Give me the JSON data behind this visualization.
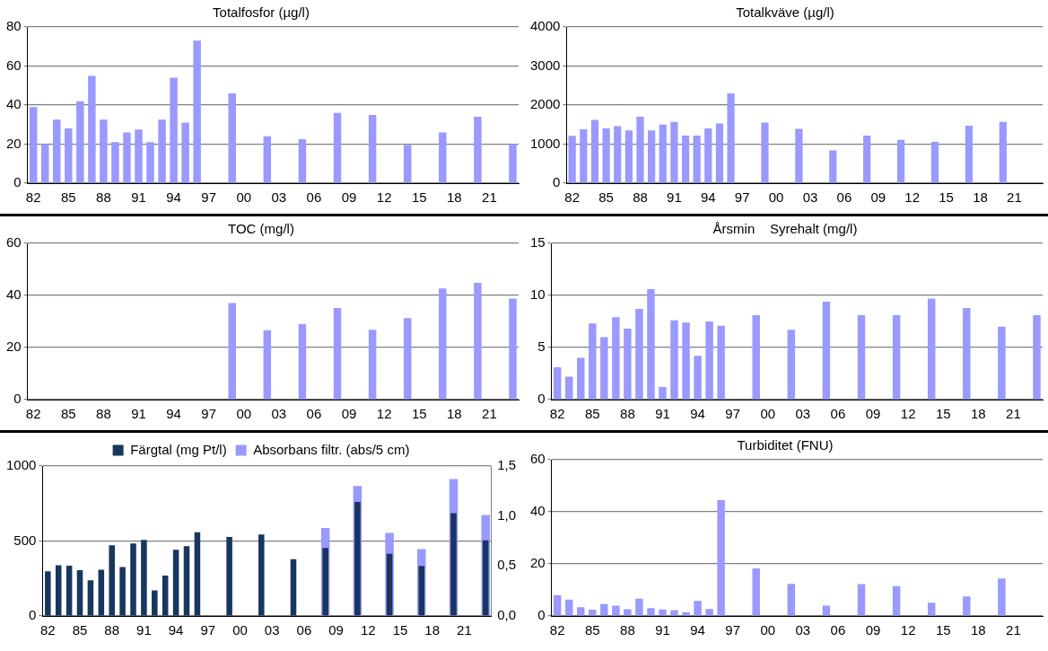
{
  "chart_data": [
    {
      "type": "bar",
      "title": "Totalfosfor (µg/l)",
      "categories": [
        "82",
        null,
        null,
        "85",
        null,
        null,
        "88",
        null,
        null,
        "91",
        null,
        null,
        "94",
        null,
        null,
        "97",
        null,
        null,
        "00",
        null,
        null,
        "03",
        null,
        null,
        "06",
        null,
        null,
        "09",
        null,
        null,
        "12",
        null,
        null,
        "15",
        null,
        null,
        "18",
        null,
        null,
        "21",
        null,
        null
      ],
      "series": [
        {
          "color": "#9999ff",
          "values": [
            39,
            20,
            32.5,
            28,
            42,
            55,
            32.5,
            21,
            26,
            27.5,
            21,
            32.5,
            54,
            31,
            73,
            null,
            null,
            46,
            null,
            null,
            24,
            null,
            null,
            22.5,
            null,
            null,
            36,
            null,
            null,
            35,
            null,
            null,
            19.5,
            null,
            null,
            26,
            null,
            null,
            34,
            null,
            null,
            20
          ]
        }
      ],
      "ylim": [
        0,
        80
      ],
      "yticks": [
        0,
        20,
        40,
        60,
        80
      ],
      "grid": "y",
      "legend": false
    },
    {
      "type": "bar",
      "title": "Totalkväve (µg/l)",
      "categories": [
        "82",
        null,
        null,
        "85",
        null,
        null,
        "88",
        null,
        null,
        "91",
        null,
        null,
        "94",
        null,
        null,
        "97",
        null,
        null,
        "00",
        null,
        null,
        "03",
        null,
        null,
        "06",
        null,
        null,
        "09",
        null,
        null,
        "12",
        null,
        null,
        "15",
        null,
        null,
        "18",
        null,
        null,
        "21",
        null,
        null
      ],
      "series": [
        {
          "color": "#9999ff",
          "values": [
            1210,
            1380,
            1620,
            1400,
            1460,
            1350,
            1700,
            1350,
            1500,
            1570,
            1220,
            1220,
            1400,
            1530,
            2300,
            null,
            null,
            1550,
            null,
            null,
            1390,
            null,
            null,
            840,
            null,
            null,
            1220,
            null,
            null,
            1110,
            null,
            null,
            1060,
            null,
            null,
            1470,
            null,
            null,
            1570,
            null,
            null,
            null
          ]
        }
      ],
      "ylim": [
        0,
        4000
      ],
      "yticks": [
        0,
        1000,
        2000,
        3000,
        4000
      ],
      "grid": "y",
      "legend": false
    },
    {
      "type": "bar",
      "title": "TOC (mg/l)",
      "categories": [
        "82",
        null,
        null,
        "85",
        null,
        null,
        "88",
        null,
        null,
        "91",
        null,
        null,
        "94",
        null,
        null,
        "97",
        null,
        null,
        "00",
        null,
        null,
        "03",
        null,
        null,
        "06",
        null,
        null,
        "09",
        null,
        null,
        "12",
        null,
        null,
        "15",
        null,
        null,
        "18",
        null,
        null,
        "21",
        null,
        null
      ],
      "series": [
        {
          "color": "#9999ff",
          "values": [
            null,
            null,
            null,
            null,
            null,
            null,
            null,
            null,
            null,
            null,
            null,
            null,
            null,
            null,
            null,
            null,
            null,
            37.1,
            null,
            null,
            26.6,
            null,
            null,
            29,
            null,
            null,
            35.2,
            null,
            null,
            26.8,
            null,
            null,
            31.3,
            null,
            null,
            42.7,
            null,
            null,
            44.8,
            null,
            null,
            38.8
          ]
        }
      ],
      "ylim": [
        0,
        60
      ],
      "yticks": [
        0,
        20,
        40,
        60
      ],
      "grid": "y",
      "legend": false
    },
    {
      "type": "bar",
      "title": "Årsmin    Syrehalt (mg/l)",
      "categories": [
        "82",
        null,
        null,
        "85",
        null,
        null,
        "88",
        null,
        null,
        "91",
        null,
        null,
        "94",
        null,
        null,
        "97",
        null,
        null,
        "00",
        null,
        null,
        "03",
        null,
        null,
        "06",
        null,
        null,
        "09",
        null,
        null,
        "12",
        null,
        null,
        "15",
        null,
        null,
        "18",
        null,
        null,
        "21",
        null,
        null
      ],
      "series": [
        {
          "color": "#9999ff",
          "values": [
            3.1,
            2.2,
            4,
            7.3,
            6,
            7.9,
            6.8,
            8.7,
            10.6,
            1.2,
            7.6,
            7.4,
            4.2,
            7.5,
            7.1,
            null,
            null,
            8.1,
            null,
            null,
            6.7,
            null,
            null,
            9.4,
            null,
            null,
            8.1,
            null,
            null,
            8.1,
            null,
            null,
            9.7,
            null,
            null,
            8.8,
            null,
            null,
            7,
            null,
            null,
            8.1
          ]
        }
      ],
      "ylim": [
        0,
        15
      ],
      "yticks": [
        0,
        5,
        10,
        15
      ],
      "grid": "y",
      "legend": false
    },
    {
      "type": "bar",
      "categories": [
        "82",
        null,
        null,
        "85",
        null,
        null,
        "88",
        null,
        null,
        "91",
        null,
        null,
        "94",
        null,
        null,
        "97",
        null,
        null,
        "00",
        null,
        null,
        "03",
        null,
        null,
        "06",
        null,
        null,
        "09",
        null,
        null,
        "12",
        null,
        null,
        "15",
        null,
        null,
        "18",
        null,
        null,
        "21",
        null,
        null
      ],
      "series": [
        {
          "name": "Färgtal (mg Pt/l)",
          "color": "#17375e",
          "values": [
            298,
            339,
            336,
            305,
            238,
            309,
            471,
            327,
            484,
            507,
            170,
            269,
            442,
            466,
            558,
            null,
            null,
            527,
            null,
            null,
            543,
            null,
            null,
            379,
            null,
            null,
            453,
            null,
            null,
            760,
            null,
            null,
            415,
            null,
            null,
            334,
            null,
            null,
            686,
            null,
            null,
            505
          ]
        },
        {
          "name": "Absorbans filtr. (abs/5 cm)",
          "color": "#9999ff",
          "axis": "y2",
          "values": [
            null,
            null,
            null,
            null,
            null,
            null,
            null,
            null,
            null,
            null,
            null,
            null,
            null,
            null,
            null,
            null,
            null,
            null,
            null,
            null,
            null,
            null,
            null,
            null,
            null,
            null,
            0.88,
            null,
            null,
            1.3,
            null,
            null,
            0.83,
            null,
            null,
            0.67,
            null,
            null,
            1.37,
            null,
            null,
            1.01
          ]
        }
      ],
      "ylim": [
        0,
        1000
      ],
      "yticks": [
        0,
        500,
        1000
      ],
      "y2lim": [
        0,
        1.5
      ],
      "y2ticks": [
        {
          "value": 0,
          "label": "0,0"
        },
        {
          "value": 0.5,
          "label": "0,5"
        },
        {
          "value": 1,
          "label": "1,0"
        },
        {
          "value": 1.5,
          "label": "1,5"
        }
      ],
      "grid": "y",
      "legend": "top"
    },
    {
      "type": "bar",
      "title": "Turbiditet (FNU)",
      "categories": [
        "82",
        null,
        null,
        "85",
        null,
        null,
        "88",
        null,
        null,
        "91",
        null,
        null,
        "94",
        null,
        null,
        "97",
        null,
        null,
        "00",
        null,
        null,
        "03",
        null,
        null,
        "06",
        null,
        null,
        "09",
        null,
        null,
        "12",
        null,
        null,
        "15",
        null,
        null,
        "18",
        null,
        null,
        "21",
        null,
        null
      ],
      "series": [
        {
          "color": "#9999ff",
          "values": [
            8,
            6.3,
            3.4,
            2.4,
            4.6,
            4,
            2.6,
            6.6,
            3,
            2.5,
            2.2,
            1.5,
            5.8,
            2.7,
            44.5,
            null,
            null,
            18.3,
            null,
            null,
            12.3,
            null,
            null,
            4,
            null,
            null,
            12.2,
            null,
            null,
            11.5,
            null,
            null,
            5.1,
            null,
            null,
            7.5,
            null,
            null,
            14.4,
            null,
            null,
            null
          ]
        }
      ],
      "ylim": [
        0,
        60
      ],
      "yticks": [
        0,
        20,
        40,
        60
      ],
      "grid": "y",
      "legend": false
    }
  ]
}
